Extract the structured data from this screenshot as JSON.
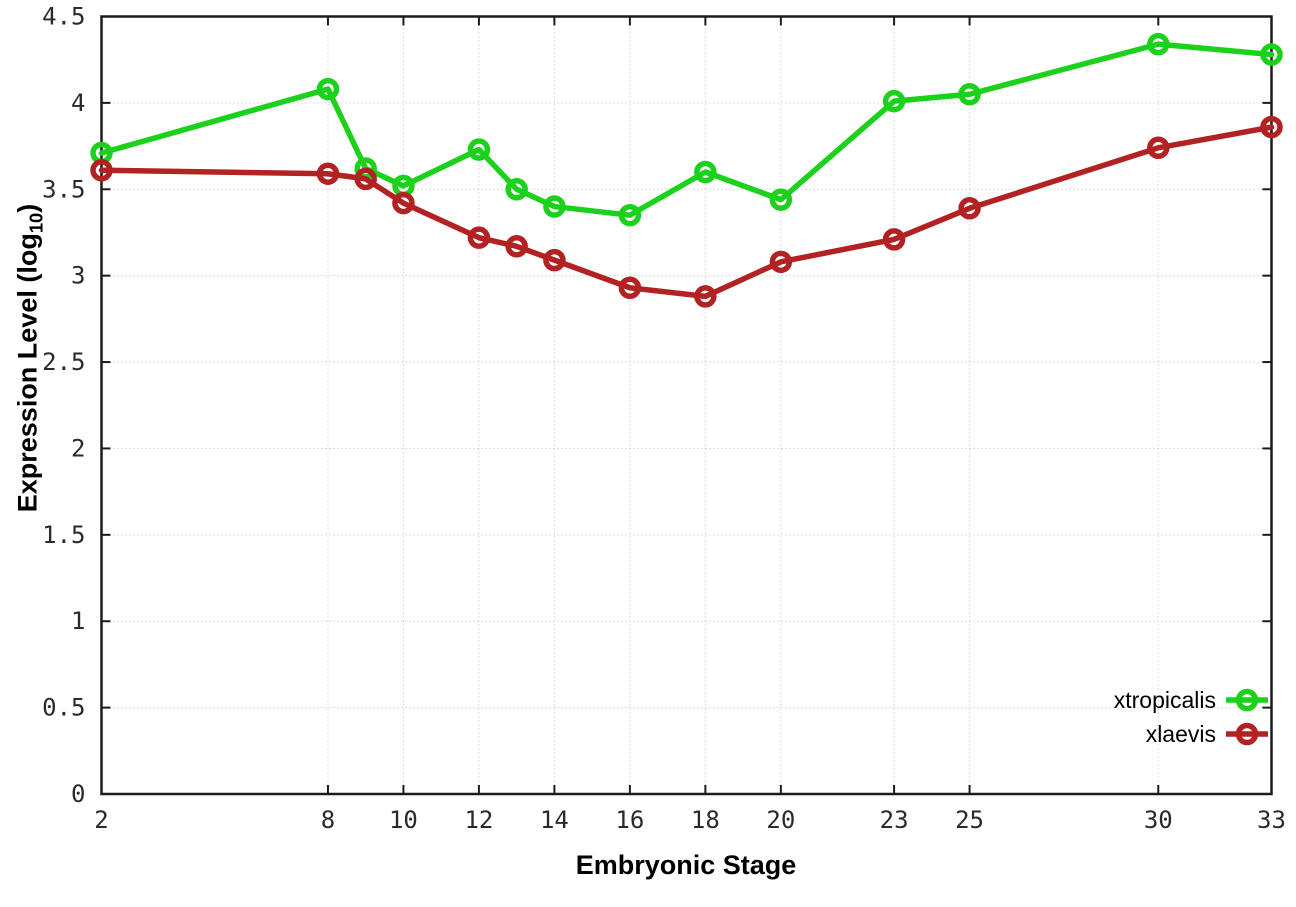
{
  "chart_data": {
    "type": "line",
    "xlabel": "Embryonic Stage",
    "ylabel": "Expression Level (log10)",
    "ylabel_parts": {
      "prefix": "Expression Level (log",
      "sub": "10",
      "suffix": ")"
    },
    "xlim": [
      2,
      33
    ],
    "ylim": [
      0,
      4.5
    ],
    "x_ticks": [
      2,
      8,
      10,
      12,
      14,
      16,
      18,
      20,
      23,
      25,
      30,
      33
    ],
    "y_ticks": [
      0,
      0.5,
      1,
      1.5,
      2,
      2.5,
      3,
      3.5,
      4,
      4.5
    ],
    "y_tick_labels": [
      "0",
      "0.5",
      "1",
      "1.5",
      "2",
      "2.5",
      "3",
      "3.5",
      "4",
      "4.5"
    ],
    "grid": true,
    "legend_position": "bottom-right",
    "x": [
      2,
      8,
      9,
      10,
      12,
      13,
      14,
      16,
      18,
      20,
      23,
      25,
      30,
      33
    ],
    "series": [
      {
        "name": "xtropicalis",
        "color": "#1bd11b",
        "values": [
          3.71,
          4.08,
          3.62,
          3.52,
          3.73,
          3.5,
          3.4,
          3.35,
          3.6,
          3.44,
          4.01,
          4.05,
          4.34,
          4.28
        ]
      },
      {
        "name": "xlaevis",
        "color": "#b22222",
        "values": [
          3.61,
          3.59,
          3.56,
          3.42,
          3.22,
          3.17,
          3.09,
          2.93,
          2.88,
          3.08,
          3.21,
          3.39,
          3.74,
          3.86
        ]
      }
    ],
    "style": {
      "background": "#ffffff",
      "grid_color": "#b8b8b8",
      "axis_color": "#1c1c1c",
      "tick_label_color": "#2a2a2a",
      "legend_text_color": "#000000"
    }
  }
}
